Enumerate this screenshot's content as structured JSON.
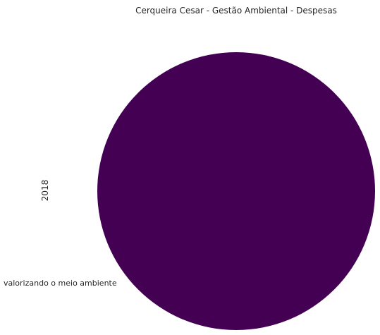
{
  "chart_data": {
    "type": "pie",
    "title": "Cerqueira Cesar - Gestão Ambiental - Despesas",
    "ylabel": "2018",
    "slices": [
      {
        "label": "valorizando o meio ambiente",
        "value": 1,
        "color": "#440154"
      }
    ],
    "legend": "none"
  }
}
